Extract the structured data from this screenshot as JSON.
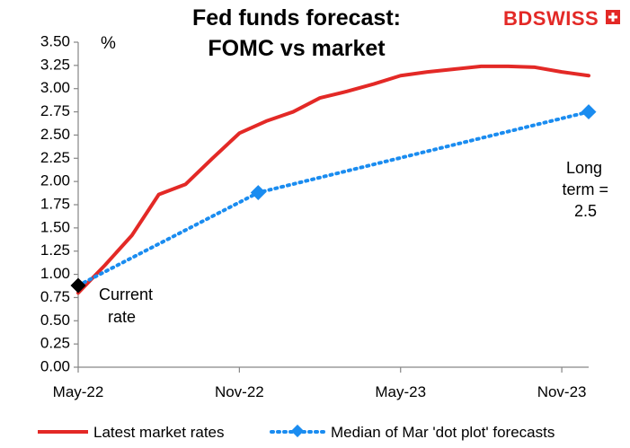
{
  "brand": {
    "name": "BDSWISS"
  },
  "chart_data": {
    "type": "line",
    "title_lines": [
      "Fed funds forecast:",
      "FOMC vs market"
    ],
    "ylabel": "%",
    "ylim": [
      0,
      3.5
    ],
    "yticks": [
      "0.00",
      "0.25",
      "0.50",
      "0.75",
      "1.00",
      "1.25",
      "1.50",
      "1.75",
      "2.00",
      "2.25",
      "2.50",
      "2.75",
      "3.00",
      "3.25",
      "3.50"
    ],
    "xticks": [
      {
        "label": "May-22",
        "x": 0
      },
      {
        "label": "Nov-22",
        "x": 6
      },
      {
        "label": "May-23",
        "x": 12
      },
      {
        "label": "Nov-23",
        "x": 18
      }
    ],
    "grid": false,
    "legend_position": "bottom",
    "series": [
      {
        "name": "Latest market rates",
        "color": "#e32926",
        "style": "solid",
        "x": [
          0,
          1,
          2,
          3,
          4,
          5,
          6,
          7,
          8,
          9,
          10,
          11,
          12,
          13,
          14,
          15,
          16,
          17,
          18,
          19
        ],
        "values": [
          0.8,
          1.1,
          1.42,
          1.86,
          1.97,
          2.25,
          2.52,
          2.65,
          2.75,
          2.9,
          2.97,
          3.05,
          3.14,
          3.18,
          3.21,
          3.24,
          3.24,
          3.23,
          3.18,
          3.14
        ]
      },
      {
        "name": "Median of Mar 'dot plot' forecasts",
        "color": "#1a8cf0",
        "style": "dotted",
        "marker": "diamond",
        "x": [
          0,
          6.7,
          19
        ],
        "values": [
          0.88,
          1.88,
          2.75
        ]
      }
    ],
    "current_rate": {
      "x": 0,
      "value": 0.88,
      "color": "#000000"
    },
    "annotations": [
      {
        "lines": [
          "Current",
          "rate"
        ]
      },
      {
        "lines": [
          "Long",
          "term =",
          "2.5"
        ]
      }
    ]
  }
}
